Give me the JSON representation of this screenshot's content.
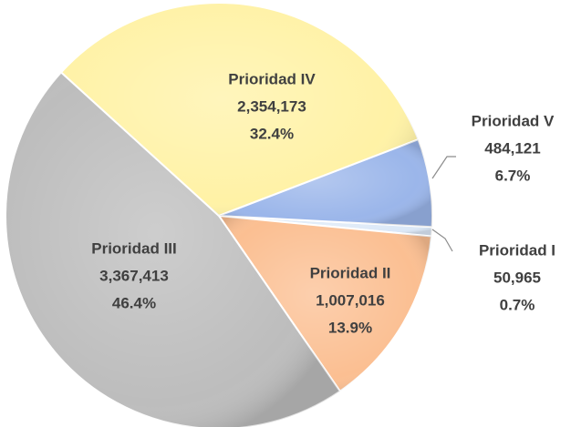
{
  "chart_data": {
    "type": "pie",
    "categories": [
      "Prioridad I",
      "Prioridad II",
      "Prioridad III",
      "Prioridad IV",
      "Prioridad V"
    ],
    "values": [
      50965,
      1007016,
      3367413,
      2354173,
      484121
    ],
    "value_labels": [
      "50,965",
      "1,007,016",
      "3,367,413",
      "2,354,173",
      "484,121"
    ],
    "percent_labels": [
      "0.7%",
      "13.9%",
      "46.4%",
      "32.4%",
      "6.7%"
    ],
    "colors": [
      "#dbe8f7",
      "#fbbf92",
      "#bdbdbd",
      "#fff2a6",
      "#9bb6ea"
    ]
  }
}
